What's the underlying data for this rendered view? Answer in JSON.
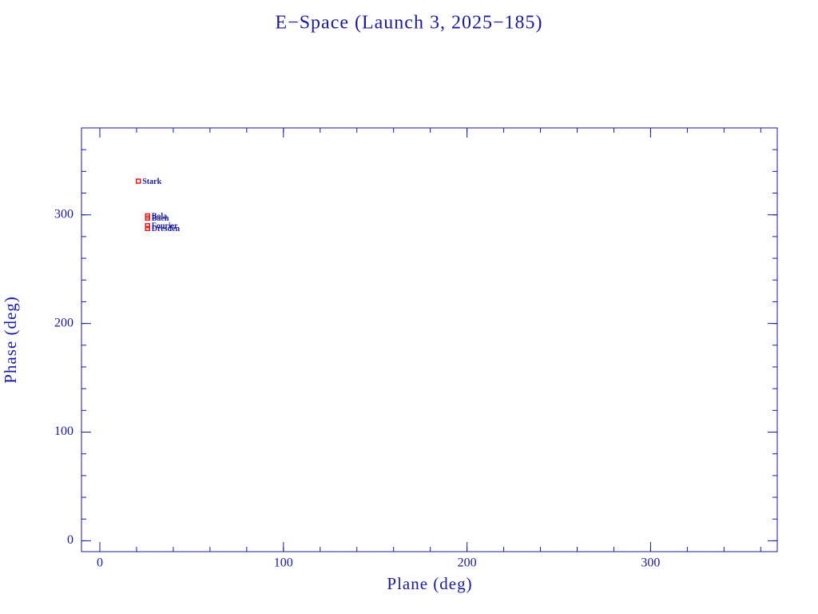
{
  "chart_data": {
    "type": "scatter",
    "title": "E−Space (Launch 3, 2025−185)",
    "xlabel": "Plane (deg)",
    "ylabel": "Phase (deg)",
    "xlim": [
      -10,
      369
    ],
    "ylim": [
      -10,
      380
    ],
    "xticks": [
      0,
      100,
      200,
      300
    ],
    "yticks": [
      0,
      100,
      200,
      300
    ],
    "series": [
      {
        "color": "#e41a1c",
        "label_color": "#1a1a9c",
        "labels": [
          "Stark",
          "Bola",
          "Baen",
          "Fourier",
          "Dresden"
        ],
        "x": [
          21,
          26,
          26,
          26,
          26
        ],
        "values": [
          331,
          299,
          297,
          290,
          287.5
        ]
      }
    ]
  }
}
